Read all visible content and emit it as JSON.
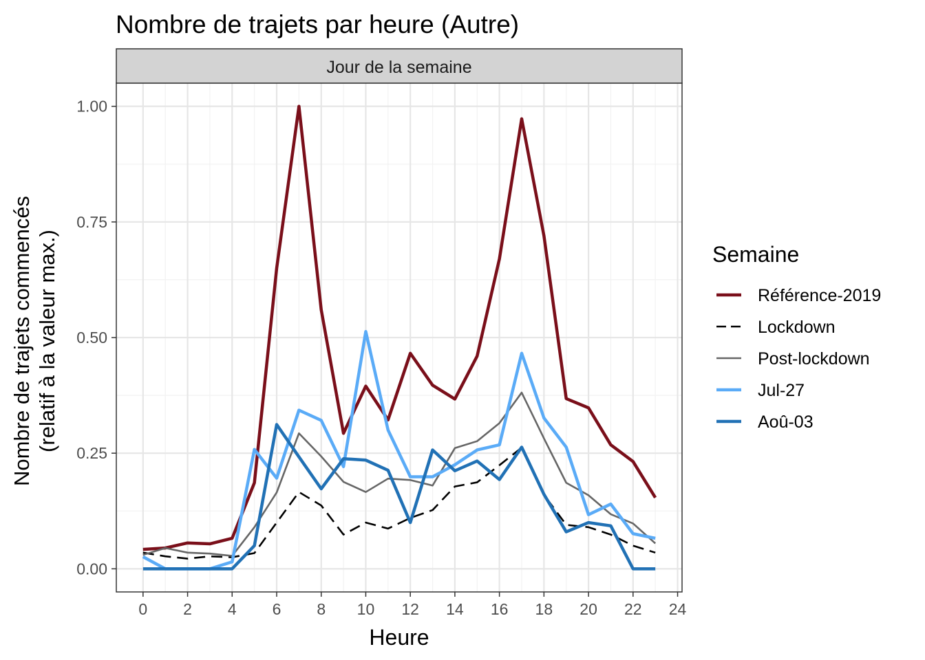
{
  "chart_data": {
    "type": "line",
    "title": "Nombre de trajets par heure (Autre)",
    "facet_label": "Jour de la semaine",
    "xlabel": "Heure",
    "ylabel_line1": "Nombre de trajets commencés",
    "ylabel_line2": "(relatif à la valeur max.)",
    "xlim": [
      -1.2,
      24.2
    ],
    "ylim": [
      -0.05,
      1.05
    ],
    "x_ticks": [
      0,
      2,
      4,
      6,
      8,
      10,
      12,
      14,
      16,
      18,
      20,
      22,
      24
    ],
    "y_ticks": [
      0,
      0.25,
      0.5,
      0.75,
      1.0
    ],
    "y_tick_labels": [
      "0.00",
      "0.25",
      "0.50",
      "0.75",
      "1.00"
    ],
    "grid": true,
    "legend_title": "Semaine",
    "legend_position": "right",
    "x": [
      0,
      1,
      2,
      3,
      4,
      5,
      6,
      7,
      8,
      9,
      10,
      11,
      12,
      13,
      14,
      15,
      16,
      17,
      18,
      19,
      20,
      21,
      22,
      23
    ],
    "series": [
      {
        "name": "Référence-2019",
        "color": "#7a0f1a",
        "style": "solid",
        "values": [
          0.042,
          0.045,
          0.056,
          0.054,
          0.066,
          0.186,
          0.65,
          1.0,
          0.56,
          0.293,
          0.395,
          0.322,
          0.466,
          0.397,
          0.367,
          0.46,
          0.67,
          0.973,
          0.72,
          0.368,
          0.348,
          0.268,
          0.232,
          0.154
        ]
      },
      {
        "name": "Lockdown",
        "color": "#000000",
        "style": "dashed",
        "values": [
          0.035,
          0.027,
          0.022,
          0.027,
          0.025,
          0.034,
          0.1,
          0.166,
          0.137,
          0.074,
          0.1,
          0.087,
          0.11,
          0.127,
          0.178,
          0.187,
          0.224,
          0.262,
          0.16,
          0.095,
          0.09,
          0.074,
          0.05,
          0.035
        ]
      },
      {
        "name": "Post-lockdown",
        "color": "#666666",
        "style": "solid",
        "values": [
          0.03,
          0.045,
          0.035,
          0.033,
          0.028,
          0.09,
          0.165,
          0.293,
          0.243,
          0.188,
          0.166,
          0.195,
          0.192,
          0.18,
          0.261,
          0.276,
          0.315,
          0.381,
          0.282,
          0.186,
          0.159,
          0.118,
          0.098,
          0.055
        ]
      },
      {
        "name": "Jul-27",
        "color": "#5aabf7",
        "style": "solid",
        "values": [
          0.026,
          0.0,
          0.0,
          0.0,
          0.015,
          0.258,
          0.196,
          0.343,
          0.321,
          0.221,
          0.513,
          0.3,
          0.199,
          0.199,
          0.225,
          0.257,
          0.268,
          0.466,
          0.326,
          0.263,
          0.117,
          0.14,
          0.076,
          0.066
        ]
      },
      {
        "name": "Aoû-03",
        "color": "#2171b5",
        "style": "solid",
        "values": [
          0.0,
          0.0,
          0.0,
          0.0,
          0.0,
          0.05,
          0.312,
          0.242,
          0.173,
          0.238,
          0.235,
          0.213,
          0.1,
          0.257,
          0.212,
          0.233,
          0.193,
          0.263,
          0.161,
          0.08,
          0.1,
          0.093,
          0.0,
          0.0
        ]
      }
    ]
  }
}
